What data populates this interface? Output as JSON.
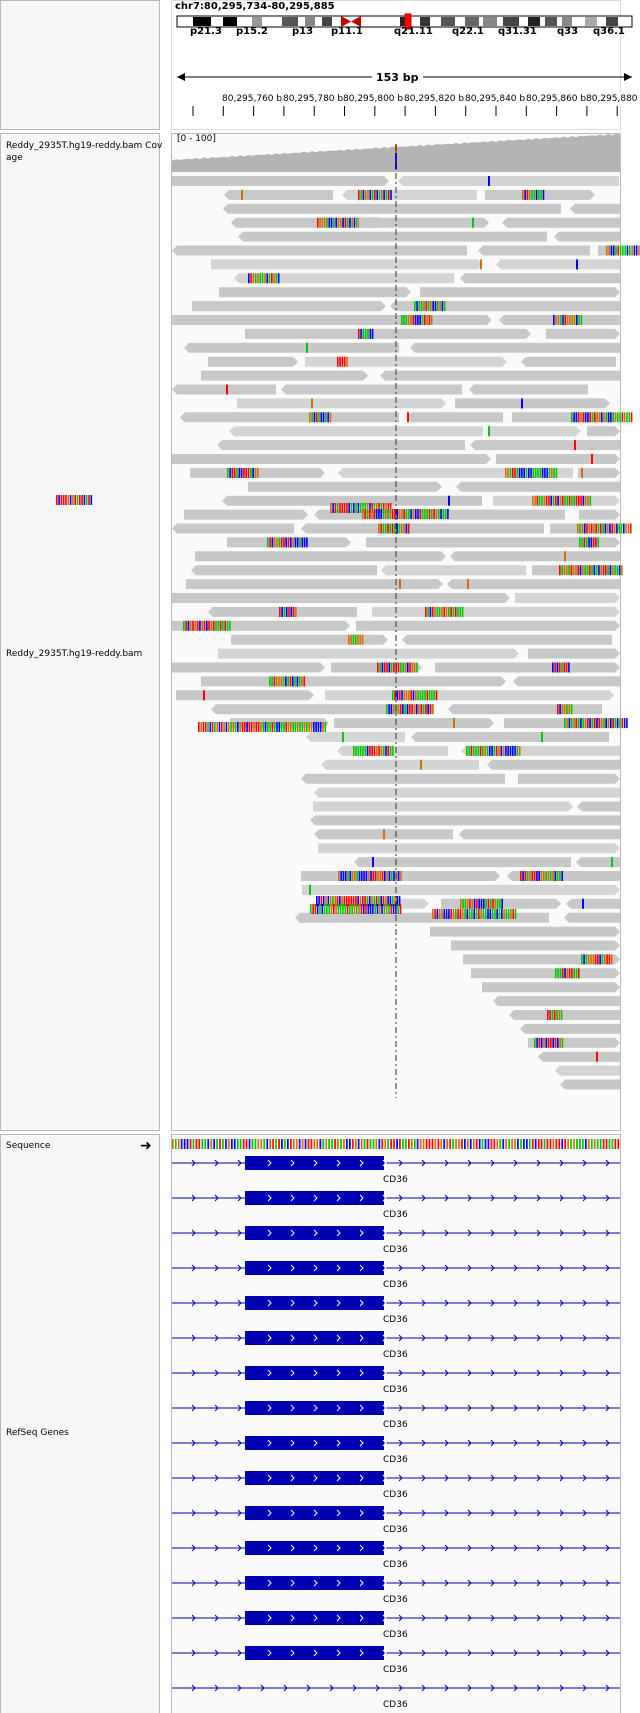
{
  "header": {
    "locus": "chr7:80,295,734-80,295,885",
    "cytobands": [
      "p21.3",
      "p15.2",
      "p13",
      "p11.1",
      "q21.11",
      "q22.1",
      "q31.31",
      "q33",
      "q36.1"
    ],
    "span_label": "153 bp",
    "ruler_ticks": [
      "80,295,760 bp",
      "80,295,780 bp",
      "80,295,800 bp",
      "80,295,820 bp",
      "80,295,840 bp",
      "80,295,860 bp",
      "80,295,880"
    ]
  },
  "tracks": {
    "coverage": {
      "name": "Reddy_2935T.hg19-reddy.bam Coverage",
      "name_line1": "Reddy_2935T.hg19-reddy.bam Cov",
      "name_line2": "age",
      "range": "[0 - 100]"
    },
    "alignments": {
      "name": "Reddy_2935T.hg19-reddy.bam"
    },
    "sequence": {
      "name": "Sequence",
      "strand_icon": "right-arrow-icon"
    },
    "genes": {
      "name": "RefSeq Genes",
      "gene_name": "CD36",
      "transcript_count": 16
    }
  },
  "colors": {
    "read": "#c8c8c8",
    "read_light": "#d4d4d4",
    "coverage": "#b4b4b4",
    "gene": "#0000b3",
    "base_A": "#00c800",
    "base_C": "#0000ff",
    "base_G": "#d17105",
    "base_T": "#ff0000"
  }
}
